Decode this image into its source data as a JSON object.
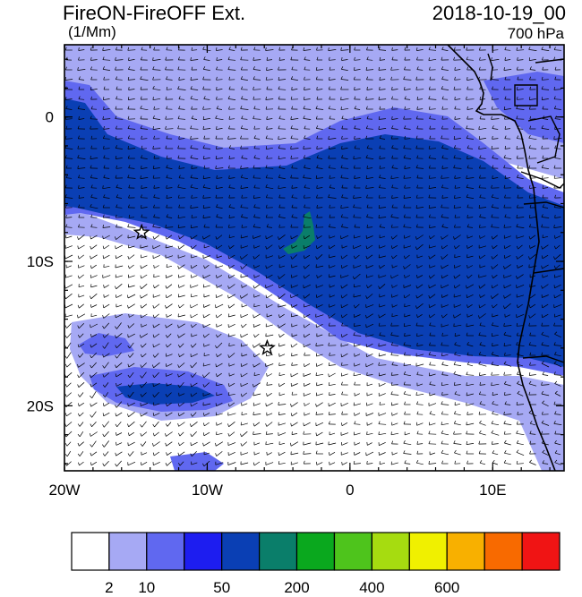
{
  "header": {
    "title": "FireON-FireOFF Ext.",
    "units": "(1/Mm)",
    "datetime": "2018-10-19_00",
    "level": "700 hPa"
  },
  "map": {
    "lon_range": [
      -20,
      15
    ],
    "lat_range": [
      -24.5,
      5
    ],
    "lon_ticks": [
      {
        "value": -20,
        "label": "20W"
      },
      {
        "value": -10,
        "label": "10W"
      },
      {
        "value": 0,
        "label": "0"
      },
      {
        "value": 10,
        "label": "10E"
      }
    ],
    "lat_ticks": [
      {
        "value": 0,
        "label": "0"
      },
      {
        "value": -10,
        "label": "10S"
      },
      {
        "value": -20,
        "label": "20S"
      }
    ],
    "markers": [
      {
        "name": "star",
        "lon": -14.6,
        "lat": -8.0
      },
      {
        "name": "star",
        "lon": -5.8,
        "lat": -16.0
      }
    ]
  },
  "colorbar": {
    "colors": [
      "#ffffff",
      "#a6a9f4",
      "#6068f0",
      "#1d1df0",
      "#0a3fb4",
      "#0a7e6a",
      "#0aa81e",
      "#4ec41c",
      "#a6dc10",
      "#f0f000",
      "#f8b000",
      "#f86a00",
      "#f01414"
    ],
    "labels": [
      {
        "after_box": 1,
        "text": "2"
      },
      {
        "after_box": 2,
        "text": "10"
      },
      {
        "after_box": 4,
        "text": "50"
      },
      {
        "after_box": 6,
        "text": "200"
      },
      {
        "after_box": 8,
        "text": "400"
      },
      {
        "after_box": 10,
        "text": "600"
      }
    ]
  }
}
